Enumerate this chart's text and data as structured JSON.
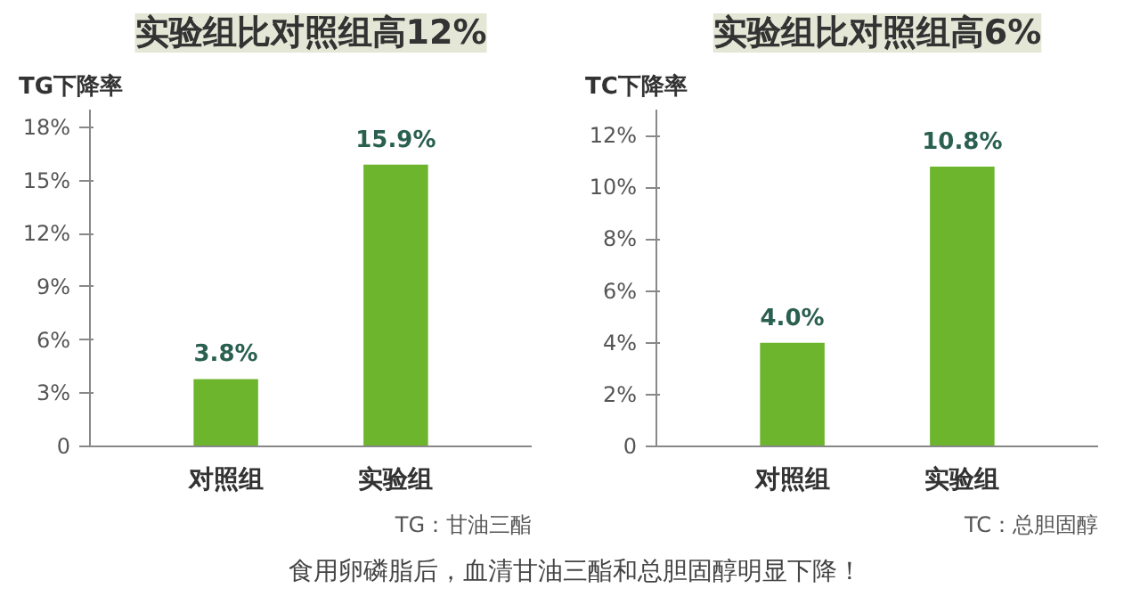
{
  "chart_data": [
    {
      "type": "bar",
      "title": "实验组比对照组高12%",
      "ylabel": "TG下降率",
      "categories": [
        "对照组",
        "实验组"
      ],
      "values": [
        3.8,
        15.9
      ],
      "color": "#6cb52d",
      "value_labels": [
        "3.8%",
        "15.9%"
      ],
      "ylim": [
        0,
        19
      ],
      "yticks": [
        {
          "value": 0,
          "label": "0"
        },
        {
          "value": 3,
          "label": "3%"
        },
        {
          "value": 6,
          "label": "6%"
        },
        {
          "value": 9,
          "label": "9%"
        },
        {
          "value": 12,
          "label": "12%"
        },
        {
          "value": 15,
          "label": "15%"
        },
        {
          "value": 18,
          "label": "18%"
        }
      ],
      "grid": false,
      "annotations": [
        "TG：甘油三酯"
      ]
    },
    {
      "type": "bar",
      "title": "实验组比对照组高6%",
      "ylabel": "TC下降率",
      "categories": [
        "对照组",
        "实验组"
      ],
      "values": [
        4.0,
        10.8
      ],
      "color": "#6cb52d",
      "value_labels": [
        "4.0%",
        "10.8%"
      ],
      "ylim": [
        0,
        13
      ],
      "yticks": [
        {
          "value": 0,
          "label": "0"
        },
        {
          "value": 2,
          "label": "2%"
        },
        {
          "value": 4,
          "label": "4%"
        },
        {
          "value": 6,
          "label": "6%"
        },
        {
          "value": 8,
          "label": "8%"
        },
        {
          "value": 10,
          "label": "10%"
        },
        {
          "value": 12,
          "label": "12%"
        }
      ],
      "grid": false,
      "annotations": [
        "TC：总胆固醇",
        "食用卵磷脂后，血清甘油三酯和总胆固醇明显下降！"
      ]
    }
  ]
}
